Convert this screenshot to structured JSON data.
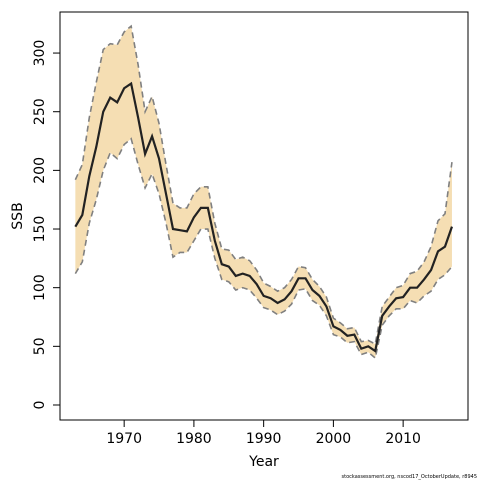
{
  "chart_data": {
    "type": "line",
    "xlabel": "Year",
    "ylabel": "SSB",
    "footer": "stockassessment.org, nscod17_OctoberUpdate, r8945",
    "x": [
      1963,
      1964,
      1965,
      1966,
      1967,
      1968,
      1969,
      1970,
      1971,
      1972,
      1973,
      1974,
      1975,
      1976,
      1977,
      1978,
      1979,
      1980,
      1981,
      1982,
      1983,
      1984,
      1985,
      1986,
      1987,
      1988,
      1989,
      1990,
      1991,
      1992,
      1993,
      1994,
      1995,
      1996,
      1997,
      1998,
      1999,
      2000,
      2001,
      2002,
      2003,
      2004,
      2005,
      2006,
      2007,
      2008,
      2009,
      2010,
      2011,
      2012,
      2013,
      2014,
      2015,
      2016,
      2017
    ],
    "values": [
      152,
      162,
      195,
      220,
      250,
      262,
      258,
      270,
      274,
      245,
      214,
      229,
      210,
      180,
      150,
      149,
      148,
      160,
      168,
      168,
      140,
      120,
      118,
      110,
      112,
      110,
      103,
      93,
      91,
      87,
      90,
      97,
      108,
      108,
      98,
      93,
      84,
      67,
      64,
      59,
      60,
      48,
      50,
      46,
      76,
      84,
      91,
      92,
      100,
      100,
      107,
      115,
      131,
      135,
      152
    ],
    "upper": [
      192,
      205,
      245,
      275,
      303,
      308,
      307,
      318,
      323,
      290,
      250,
      263,
      240,
      205,
      172,
      168,
      168,
      180,
      186,
      186,
      155,
      133,
      132,
      124,
      126,
      123,
      115,
      104,
      101,
      97,
      100,
      107,
      118,
      117,
      107,
      101,
      92,
      74,
      70,
      65,
      66,
      54,
      55,
      52,
      84,
      92,
      100,
      102,
      112,
      114,
      122,
      135,
      157,
      163,
      207
    ],
    "lower": [
      112,
      122,
      155,
      175,
      200,
      215,
      210,
      222,
      227,
      205,
      185,
      197,
      180,
      155,
      126,
      130,
      130,
      140,
      150,
      150,
      125,
      107,
      105,
      98,
      100,
      98,
      91,
      83,
      81,
      77,
      80,
      86,
      98,
      99,
      89,
      85,
      76,
      60,
      58,
      53,
      54,
      43,
      45,
      40,
      68,
      76,
      82,
      82,
      89,
      87,
      93,
      97,
      107,
      111,
      118
    ],
    "line_color": "#222222",
    "band_color": "#f5deb3",
    "bound_color": "#808080",
    "xlim": [
      1960.8,
      2019.3
    ],
    "ylim": [
      -12.8,
      335
    ],
    "xticks": [
      1970,
      1980,
      1990,
      2000,
      2010
    ],
    "yticks": [
      0,
      50,
      100,
      150,
      200,
      250,
      300
    ]
  }
}
